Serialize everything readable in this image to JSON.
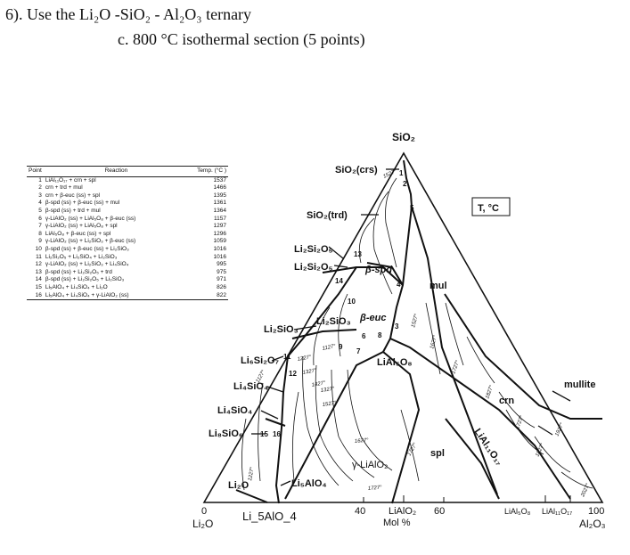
{
  "heading": {
    "line1": "6). Use the Li₂O -SiO₂ - Al₂O₃ ternary",
    "line2": "c.    800 °C isothermal section (5 points)"
  },
  "table": {
    "headers": [
      "Point",
      "Reaction",
      "Temp. (°C )"
    ],
    "rows": [
      {
        "n": "1",
        "r": "LiAl₁₁O₁₇ + crn + spl",
        "t": "1537"
      },
      {
        "n": "2",
        "r": "crn + trd + mul",
        "t": "1466"
      },
      {
        "n": "3",
        "r": "crn + β-euc (ss) + spl",
        "t": "1395"
      },
      {
        "n": "4",
        "r": "β-spd (ss) + β-euc (ss) + mul",
        "t": "1361"
      },
      {
        "n": "5",
        "r": "β-spd (ss) + trd + mul",
        "t": "1364"
      },
      {
        "n": "6",
        "r": "γ-LiAlO₂ (ss) + LiAl₅O₈ + β-euc (ss)",
        "t": "1157"
      },
      {
        "n": "7",
        "r": "γ-LiAlO₂ (ss) + LiAl₅O₈ + spl",
        "t": "1297"
      },
      {
        "n": "8",
        "r": "LiAl₅O₈ + β-euc (ss) + spl",
        "t": "1296"
      },
      {
        "n": "9",
        "r": "γ-LiAlO₂ (ss) + Li₂SiO₃ + β-euc (ss)",
        "t": "1059"
      },
      {
        "n": "10",
        "r": "β-spd (ss) + β-euc (ss) + Li₂SiO₃",
        "t": "1016"
      },
      {
        "n": "11",
        "r": "Li₂Si₂O₅ + Li₂SiO₄ + Li₂SiO₃",
        "t": "1016"
      },
      {
        "n": "12",
        "r": "γ-LiAlO₂ (ss) + Li₂SiO₃ + Li₄SiO₄",
        "t": "995"
      },
      {
        "n": "13",
        "r": "β-spd (ss) + Li₂Si₂O₅ + trd",
        "t": "975"
      },
      {
        "n": "14",
        "r": "β-spd (ss) + Li₂Si₂O₅ + Li₂SiO₃",
        "t": "971"
      },
      {
        "n": "15",
        "r": "Li₅AlO₄ + Li₄SiO₄ + Li₂O",
        "t": "826"
      },
      {
        "n": "16",
        "r": "Li₅AlO₄ + Li₄SiO₄ + γ-LiAlO₂ (ss)",
        "t": "822"
      }
    ]
  },
  "diagram": {
    "apex_top": "SiO₂",
    "apex_left": "Li₂O",
    "apex_right": "Al₂O₃",
    "temp_box": "T, °C",
    "phases": {
      "sio2_crs": "SiO₂(crs)",
      "sio2_trd": "SiO₂(trd)",
      "li2si2o5a": "Li₂Si₂O₅",
      "li2si2o5b": "Li₂Si₂O₅",
      "li2sio3_left": "Li₂SiO₃",
      "li2sio3_mid": "Li₂SiO₃",
      "li6si2o7": "Li₆Si₂O₇",
      "li4sio4a": "Li₄SiO₄",
      "li4sio4b": "Li₄SiO₄",
      "li8sio6": "Li₈SiO₆",
      "li2o_field": "Li₂O",
      "li5alo4": "Li₅AlO₄",
      "beta_spd": "β-spd",
      "beta_euc": "β-euc",
      "mul": "mul",
      "lial5o8_field": "LiAl₅O₈",
      "crn": "crn",
      "mullite": "mullite",
      "lial11o17": "LiAl₁₁O₁₇",
      "gamma_lialo2": "γ-LiAlO₂",
      "spl": "spl"
    },
    "points": [
      "1",
      "2",
      "3",
      "4",
      "5",
      "6",
      "7",
      "8",
      "9",
      "10",
      "11",
      "12",
      "13",
      "14",
      "15",
      "16"
    ],
    "isotherms": [
      "1527°",
      "1127°",
      "1227°",
      "1327°",
      "1427°",
      "1527°",
      "1627°",
      "1727°",
      "1527°",
      "1627°",
      "1727°",
      "1827°",
      "1727°",
      "1827°",
      "1927°",
      "2027°",
      "1127°",
      "1227°",
      "1727°",
      "1327°"
    ],
    "axis": {
      "tick0": "0",
      "tick40": "40",
      "tick60": "60",
      "tick100": "100",
      "lialo2": "LiAlO₂",
      "mol": "Mol %",
      "lial5o8": "LiAl₅O₈",
      "lial11o17": "LiAl₁₁O₁₇"
    },
    "annotation": "Li_5AlO_4"
  }
}
